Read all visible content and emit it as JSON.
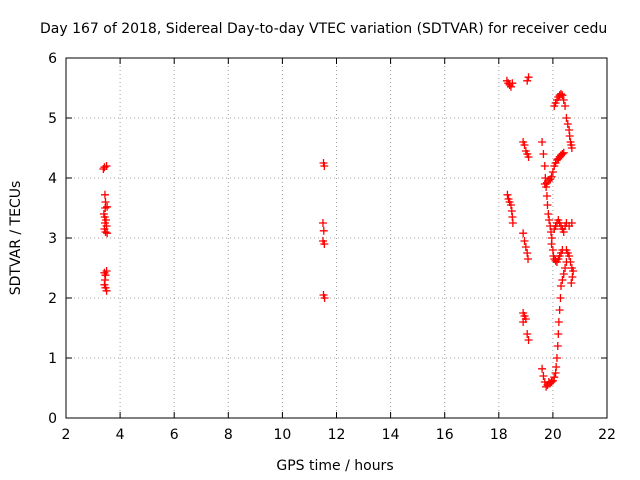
{
  "chart_data": {
    "type": "scatter",
    "title": "Day 167 of 2018, Sidereal Day-to-day VTEC variation (SDTVAR) for receiver cedu",
    "xlabel": "GPS time / hours",
    "ylabel": "SDTVAR / TECUs",
    "xlim": [
      2,
      22
    ],
    "ylim": [
      0,
      6
    ],
    "xticks": [
      "2",
      "4",
      "6",
      "8",
      "10",
      "12",
      "14",
      "16",
      "18",
      "20",
      "22"
    ],
    "yticks": [
      "0",
      "1",
      "2",
      "3",
      "4",
      "5",
      "6"
    ],
    "grid": true,
    "marker": "+",
    "color": "#ff0000",
    "series": [
      {
        "name": "SDTVAR",
        "points": [
          [
            3.38,
            4.15
          ],
          [
            3.42,
            4.18
          ],
          [
            3.5,
            4.2
          ],
          [
            3.44,
            3.72
          ],
          [
            3.46,
            3.6
          ],
          [
            3.45,
            3.5
          ],
          [
            3.52,
            3.52
          ],
          [
            3.4,
            3.4
          ],
          [
            3.43,
            3.35
          ],
          [
            3.48,
            3.3
          ],
          [
            3.44,
            3.25
          ],
          [
            3.5,
            3.2
          ],
          [
            3.42,
            3.15
          ],
          [
            3.46,
            3.1
          ],
          [
            3.52,
            3.08
          ],
          [
            3.42,
            2.42
          ],
          [
            3.46,
            2.38
          ],
          [
            3.5,
            2.45
          ],
          [
            3.44,
            2.3
          ],
          [
            3.42,
            2.22
          ],
          [
            3.46,
            2.17
          ],
          [
            3.5,
            2.12
          ],
          [
            11.52,
            4.25
          ],
          [
            11.55,
            4.2
          ],
          [
            11.5,
            3.25
          ],
          [
            11.53,
            3.12
          ],
          [
            11.5,
            2.95
          ],
          [
            11.55,
            2.9
          ],
          [
            11.52,
            2.05
          ],
          [
            11.56,
            2.0
          ],
          [
            18.3,
            5.62
          ],
          [
            18.35,
            5.58
          ],
          [
            18.4,
            5.55
          ],
          [
            18.45,
            5.52
          ],
          [
            18.5,
            5.58
          ],
          [
            18.32,
            3.72
          ],
          [
            18.36,
            3.65
          ],
          [
            18.4,
            3.6
          ],
          [
            18.45,
            3.55
          ],
          [
            18.48,
            3.45
          ],
          [
            18.5,
            3.35
          ],
          [
            18.52,
            3.25
          ],
          [
            18.9,
            4.6
          ],
          [
            18.95,
            4.55
          ],
          [
            19.0,
            4.45
          ],
          [
            19.05,
            4.4
          ],
          [
            19.1,
            4.35
          ],
          [
            19.05,
            5.62
          ],
          [
            19.1,
            5.68
          ],
          [
            18.9,
            3.08
          ],
          [
            18.95,
            2.95
          ],
          [
            19.0,
            2.85
          ],
          [
            19.05,
            2.75
          ],
          [
            19.08,
            2.65
          ],
          [
            18.9,
            1.75
          ],
          [
            18.95,
            1.7
          ],
          [
            19.0,
            1.65
          ],
          [
            18.9,
            1.6
          ],
          [
            19.05,
            1.4
          ],
          [
            19.1,
            1.3
          ],
          [
            19.6,
            4.6
          ],
          [
            19.65,
            4.4
          ],
          [
            19.7,
            4.2
          ],
          [
            19.72,
            4.0
          ],
          [
            19.75,
            3.85
          ],
          [
            19.78,
            3.7
          ],
          [
            19.8,
            3.55
          ],
          [
            19.83,
            3.4
          ],
          [
            19.86,
            3.3
          ],
          [
            19.9,
            3.2
          ],
          [
            19.93,
            3.1
          ],
          [
            19.96,
            3.0
          ],
          [
            19.7,
            3.9
          ],
          [
            19.78,
            3.92
          ],
          [
            19.85,
            3.95
          ],
          [
            19.9,
            3.98
          ],
          [
            19.95,
            4.02
          ],
          [
            20.0,
            4.1
          ],
          [
            20.05,
            4.2
          ],
          [
            20.1,
            4.25
          ],
          [
            20.15,
            4.3
          ],
          [
            20.2,
            4.32
          ],
          [
            20.25,
            4.35
          ],
          [
            20.3,
            4.38
          ],
          [
            20.35,
            4.4
          ],
          [
            20.4,
            4.42
          ],
          [
            20.05,
            5.2
          ],
          [
            20.1,
            5.25
          ],
          [
            20.15,
            5.3
          ],
          [
            20.2,
            5.35
          ],
          [
            20.25,
            5.38
          ],
          [
            20.3,
            5.4
          ],
          [
            20.35,
            5.38
          ],
          [
            20.4,
            5.3
          ],
          [
            20.45,
            5.2
          ],
          [
            20.5,
            5.0
          ],
          [
            20.55,
            4.9
          ],
          [
            20.6,
            4.8
          ],
          [
            20.62,
            4.7
          ],
          [
            20.65,
            4.6
          ],
          [
            20.68,
            4.55
          ],
          [
            20.7,
            4.5
          ],
          [
            19.95,
            2.9
          ],
          [
            20.0,
            2.8
          ],
          [
            20.02,
            2.7
          ],
          [
            20.05,
            2.65
          ],
          [
            20.1,
            2.62
          ],
          [
            20.15,
            2.6
          ],
          [
            20.2,
            2.65
          ],
          [
            20.25,
            2.7
          ],
          [
            20.3,
            2.75
          ],
          [
            20.35,
            2.8
          ],
          [
            20.05,
            3.15
          ],
          [
            20.1,
            3.2
          ],
          [
            20.15,
            3.25
          ],
          [
            20.2,
            3.3
          ],
          [
            20.25,
            3.25
          ],
          [
            20.3,
            3.2
          ],
          [
            20.35,
            3.15
          ],
          [
            20.4,
            3.1
          ],
          [
            20.45,
            3.2
          ],
          [
            20.5,
            3.25
          ],
          [
            20.6,
            3.2
          ],
          [
            20.7,
            3.25
          ],
          [
            20.5,
            2.8
          ],
          [
            20.55,
            2.75
          ],
          [
            20.6,
            2.7
          ],
          [
            20.65,
            2.6
          ],
          [
            20.7,
            2.5
          ],
          [
            20.75,
            2.45
          ],
          [
            20.72,
            2.35
          ],
          [
            20.68,
            2.25
          ],
          [
            20.5,
            2.6
          ],
          [
            20.45,
            2.5
          ],
          [
            20.4,
            2.4
          ],
          [
            20.35,
            2.3
          ],
          [
            20.3,
            2.2
          ],
          [
            20.28,
            2.0
          ],
          [
            20.25,
            1.8
          ],
          [
            20.22,
            1.6
          ],
          [
            20.2,
            1.4
          ],
          [
            20.18,
            1.2
          ],
          [
            20.15,
            1.0
          ],
          [
            20.12,
            0.85
          ],
          [
            20.1,
            0.75
          ],
          [
            20.05,
            0.68
          ],
          [
            20.0,
            0.62
          ],
          [
            19.95,
            0.6
          ],
          [
            19.9,
            0.58
          ],
          [
            19.85,
            0.6
          ],
          [
            19.8,
            0.55
          ],
          [
            19.75,
            0.52
          ],
          [
            19.7,
            0.6
          ],
          [
            19.65,
            0.7
          ],
          [
            19.6,
            0.82
          ]
        ]
      }
    ]
  }
}
